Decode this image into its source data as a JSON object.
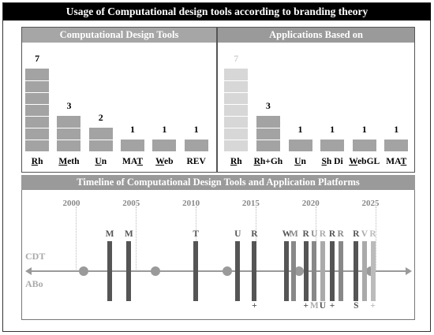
{
  "title": "Usage of Computational design tools according to branding theory",
  "panels": {
    "left_title": "Computational Design Tools",
    "right_title": "Applications Based on"
  },
  "timeline_title": "Timeline of Computational Design Tools and Application Platforms",
  "chart_data": [
    {
      "type": "bar",
      "title": "Computational Design Tools",
      "categories": [
        "Rh",
        "Meth",
        "Un",
        "MAT",
        "Web",
        "REV"
      ],
      "values": [
        7,
        3,
        2,
        1,
        1,
        1
      ],
      "bar_color": "#a3a3a3"
    },
    {
      "type": "bar",
      "title": "Applications Based on",
      "categories": [
        "Rh",
        "Rh+Gh",
        "Un",
        "Sh Di",
        "WebGL",
        "MAT"
      ],
      "values": [
        7,
        3,
        1,
        1,
        1,
        1
      ],
      "faded": [
        true,
        false,
        false,
        false,
        false,
        false
      ],
      "bar_color": "#a3a3a3",
      "faded_color": "#d7d7d7"
    },
    {
      "type": "scatter",
      "title": "Timeline of Computational Design Tools and Application Platforms",
      "x_ticks": [
        2000,
        2005,
        2010,
        2015,
        2020,
        2025
      ],
      "xlim": [
        1997,
        2028
      ],
      "rows": [
        "CDT",
        "ABo"
      ],
      "dot_years": [
        2001,
        2007,
        2013,
        2019,
        2025
      ],
      "cdt_events": [
        {
          "year": 2003.2,
          "label": "M",
          "color": "#555555"
        },
        {
          "year": 2004.8,
          "label": "M",
          "color": "#555555"
        },
        {
          "year": 2010.4,
          "label": "T",
          "color": "#555555"
        },
        {
          "year": 2013.9,
          "label": "U",
          "color": "#555555"
        },
        {
          "year": 2015.3,
          "label": "R",
          "color": "#555555"
        },
        {
          "year": 2018.0,
          "label": "W",
          "color": "#555555"
        },
        {
          "year": 2018.6,
          "label": "M",
          "color": "#888888"
        },
        {
          "year": 2019.6,
          "label": "R",
          "color": "#555555"
        },
        {
          "year": 2020.3,
          "label": "U",
          "color": "#888888"
        },
        {
          "year": 2021.0,
          "label": "R",
          "color": "#aaaaaa"
        },
        {
          "year": 2021.8,
          "label": "R",
          "color": "#555555"
        },
        {
          "year": 2022.5,
          "label": "R",
          "color": "#888888"
        },
        {
          "year": 2023.8,
          "label": "R",
          "color": "#555555"
        },
        {
          "year": 2024.5,
          "label": "V",
          "color": "#aaaaaa"
        },
        {
          "year": 2025.2,
          "label": "R",
          "color": "#bbbbbb"
        }
      ],
      "abo_events": [
        {
          "year": 2015.3,
          "label": "+",
          "color": "#555555"
        },
        {
          "year": 2019.6,
          "label": "+",
          "color": "#555555"
        },
        {
          "year": 2020.3,
          "label": "M",
          "color": "#aaaaaa"
        },
        {
          "year": 2021.0,
          "label": "U",
          "color": "#555555"
        },
        {
          "year": 2021.8,
          "label": "+",
          "color": "#555555"
        },
        {
          "year": 2023.8,
          "label": "S",
          "color": "#555555"
        },
        {
          "year": 2025.2,
          "label": "+",
          "color": "#bbbbbb"
        }
      ]
    }
  ]
}
